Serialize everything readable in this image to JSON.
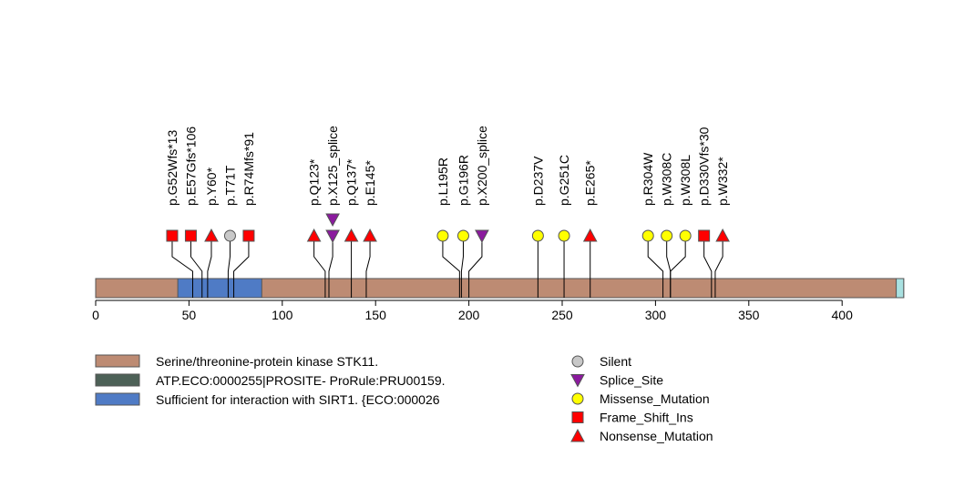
{
  "chart_data": {
    "type": "lollipop",
    "protein_length": 433,
    "x_axis": {
      "ticks": [
        0,
        50,
        100,
        150,
        200,
        250,
        300,
        350,
        400
      ]
    },
    "domains": [
      {
        "name": "Serine/threonine-protein kinase STK11.",
        "start": 0,
        "end": 433,
        "color": "#bd8b73"
      },
      {
        "name": "ATP.ECO:0000255|PROSITE- ProRule:PRU00159.",
        "start": 433,
        "end": 433,
        "color": "#4d6157"
      },
      {
        "name": "Sufficient for interaction with SIRT1. {ECO:000026",
        "start": 44,
        "end": 89,
        "color": "#4f7bc5"
      },
      {
        "name": "",
        "start": 429,
        "end": 433,
        "color": "#a9e1e1"
      }
    ],
    "mutation_types": [
      {
        "name": "Silent",
        "shape": "circle",
        "color": "#c8c8c8"
      },
      {
        "name": "Splice_Site",
        "shape": "triangle-down",
        "color": "#8b1a9e"
      },
      {
        "name": "Missense_Mutation",
        "shape": "circle",
        "color": "#ffff00"
      },
      {
        "name": "Frame_Shift_Ins",
        "shape": "square",
        "color": "#ff0000"
      },
      {
        "name": "Nonsense_Mutation",
        "shape": "triangle-up",
        "color": "#ff0000"
      }
    ],
    "mutations": [
      {
        "label": "p.G52Wfs*13",
        "pos": 52,
        "type": "Frame_Shift_Ins",
        "display_pos": 41
      },
      {
        "label": "p.E57Gfs*106",
        "pos": 57,
        "type": "Frame_Shift_Ins",
        "display_pos": 51
      },
      {
        "label": "p.Y60*",
        "pos": 60,
        "type": "Nonsense_Mutation",
        "display_pos": 62
      },
      {
        "label": "p.T71T",
        "pos": 71,
        "type": "Silent",
        "display_pos": 72
      },
      {
        "label": "p.R74Mfs*91",
        "pos": 74,
        "type": "Frame_Shift_Ins",
        "display_pos": 82
      },
      {
        "label": "p.Q123*",
        "pos": 123,
        "type": "Nonsense_Mutation",
        "display_pos": 117
      },
      {
        "label": "p.X125_splice",
        "pos": 125,
        "type": "Splice_Site",
        "display_pos": 127
      },
      {
        "label": "p.Q137*",
        "pos": 137,
        "type": "Nonsense_Mutation",
        "display_pos": 137
      },
      {
        "label": "p.E145*",
        "pos": 145,
        "type": "Nonsense_Mutation",
        "display_pos": 147
      },
      {
        "label": "p.L195R",
        "pos": 195,
        "type": "Missense_Mutation",
        "display_pos": 186
      },
      {
        "label": "p.G196R",
        "pos": 196,
        "type": "Missense_Mutation",
        "display_pos": 197
      },
      {
        "label": "p.X200_splice",
        "pos": 200,
        "type": "Splice_Site",
        "display_pos": 207
      },
      {
        "label": "p.D237V",
        "pos": 237,
        "type": "Missense_Mutation",
        "display_pos": 237
      },
      {
        "label": "p.G251C",
        "pos": 251,
        "type": "Missense_Mutation",
        "display_pos": 251
      },
      {
        "label": "p.E265*",
        "pos": 265,
        "type": "Nonsense_Mutation",
        "display_pos": 265
      },
      {
        "label": "p.R304W",
        "pos": 304,
        "type": "Missense_Mutation",
        "display_pos": 296
      },
      {
        "label": "p.W308C",
        "pos": 308,
        "type": "Missense_Mutation",
        "display_pos": 306
      },
      {
        "label": "p.W308L",
        "pos": 308,
        "type": "Missense_Mutation",
        "display_pos": 316
      },
      {
        "label": "p.D330Vfs*30",
        "pos": 330,
        "type": "Frame_Shift_Ins",
        "display_pos": 326
      },
      {
        "label": "p.W332*",
        "pos": 332,
        "type": "Nonsense_Mutation",
        "display_pos": 336
      }
    ],
    "stacked": [
      {
        "type": "Splice_Site",
        "pos": 125
      }
    ]
  }
}
